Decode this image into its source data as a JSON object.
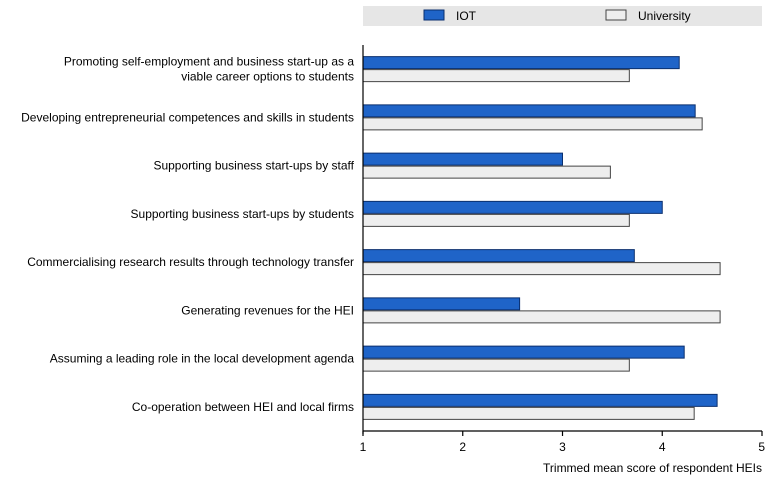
{
  "chart_data": {
    "type": "bar",
    "orientation": "horizontal",
    "categories": [
      [
        "Promoting self-employment and business start-up as a",
        "viable career options to students"
      ],
      [
        "Developing entrepreneurial competences and skills in students"
      ],
      [
        "Supporting business start-ups by staff"
      ],
      [
        "Supporting business start-ups by students"
      ],
      [
        "Commercialising research results through technology transfer"
      ],
      [
        "Generating revenues for the HEI"
      ],
      [
        "Assuming a leading role in the local development agenda"
      ],
      [
        "Co-operation between HEI and local firms"
      ]
    ],
    "series": [
      {
        "name": "IOT",
        "color": "#1f64c8",
        "stroke": "#0a2f6e",
        "values": [
          4.17,
          4.33,
          3.0,
          4.0,
          3.72,
          2.57,
          4.22,
          4.55
        ]
      },
      {
        "name": "University",
        "color": "#eeeeee",
        "stroke": "#444444",
        "values": [
          3.67,
          4.4,
          3.48,
          3.67,
          4.58,
          4.58,
          3.67,
          4.32
        ]
      }
    ],
    "xlim": [
      1,
      5
    ],
    "xticks": [
      1,
      2,
      3,
      4,
      5
    ],
    "xlabel": "Trimmed mean score of respondent HEIs",
    "legend_position": "top",
    "grid": false,
    "legend_background": "#e6e6e6",
    "axis_color": "#000000"
  }
}
